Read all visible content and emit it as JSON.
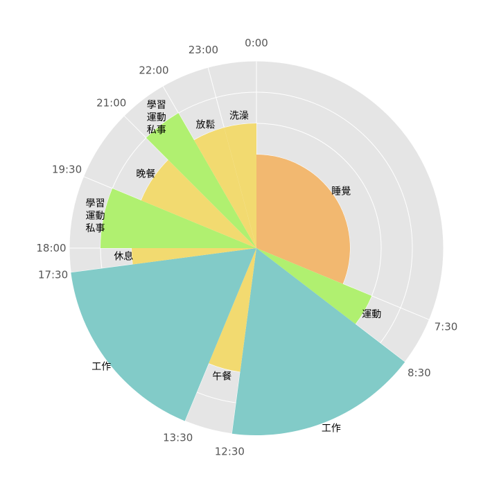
{
  "chart_data": {
    "type": "polar-bar",
    "title": "",
    "axis": {
      "start": "0:00",
      "direction": "clockwise",
      "period_hours": 24,
      "rmax": 6,
      "rings": [
        1,
        2,
        3,
        4,
        5,
        6
      ]
    },
    "grid": true,
    "tick_labels": [
      {
        "time": "0:00",
        "hour": 0
      },
      {
        "time": "7:30",
        "hour": 7.5
      },
      {
        "time": "8:30",
        "hour": 8.5
      },
      {
        "time": "12:30",
        "hour": 12.5
      },
      {
        "time": "13:30",
        "hour": 13.5
      },
      {
        "time": "17:30",
        "hour": 17.5
      },
      {
        "time": "18:00",
        "hour": 18
      },
      {
        "time": "19:30",
        "hour": 19.5
      },
      {
        "time": "21:00",
        "hour": 21
      },
      {
        "time": "22:00",
        "hour": 22
      },
      {
        "time": "23:00",
        "hour": 23
      }
    ],
    "activities": [
      {
        "label": "睡覺",
        "start": 0,
        "end": 7.5,
        "value": 3,
        "color": "#f2b870"
      },
      {
        "label": "運動",
        "start": 7.5,
        "end": 8.5,
        "value": 4,
        "color": "#b0f070"
      },
      {
        "label": "工作",
        "start": 8.5,
        "end": 12.5,
        "value": 6,
        "color": "#82cbc8"
      },
      {
        "label": "午餐",
        "start": 12.5,
        "end": 13.5,
        "value": 4,
        "color": "#f2da70"
      },
      {
        "label": "工作",
        "start": 13.5,
        "end": 17.5,
        "value": 6,
        "color": "#82cbc8"
      },
      {
        "label": "休息",
        "start": 17.5,
        "end": 18,
        "value": 4,
        "color": "#f2da70"
      },
      {
        "label": "學習\n運動\n私事",
        "start": 18,
        "end": 19.5,
        "value": 5,
        "color": "#b0f070"
      },
      {
        "label": "晚餐",
        "start": 19.5,
        "end": 21,
        "value": 4,
        "color": "#f2da70"
      },
      {
        "label": "學習\n運動\n私事",
        "start": 21,
        "end": 22,
        "value": 5,
        "color": "#b0f070"
      },
      {
        "label": "放鬆",
        "start": 22,
        "end": 23,
        "value": 4,
        "color": "#f2da70"
      },
      {
        "label": "洗澡",
        "start": 23,
        "end": 24,
        "value": 4,
        "color": "#f2da70"
      }
    ]
  }
}
